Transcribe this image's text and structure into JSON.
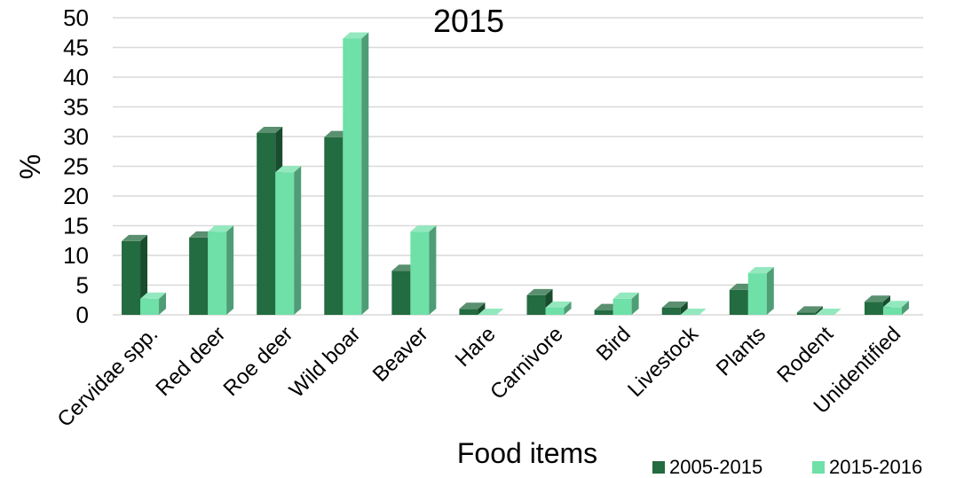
{
  "chart_data": {
    "type": "bar",
    "title": "2015",
    "xlabel": "Food items",
    "ylabel": "%",
    "ylim": [
      0,
      50
    ],
    "yticks": [
      0,
      5,
      10,
      15,
      20,
      25,
      30,
      35,
      40,
      45,
      50
    ],
    "grid": true,
    "legend_position": "bottom-right",
    "categories": [
      "Cervidae spp.",
      "Red deer",
      "Roe deer",
      "Wild boar",
      "Beaver",
      "Hare",
      "Carnivore",
      "Bird",
      "Livestock",
      "Plants",
      "Rodent",
      "Unidentified"
    ],
    "series": [
      {
        "name": "2005-2015",
        "color": "#236b40",
        "values": [
          12.4,
          13.0,
          30.6,
          29.9,
          7.4,
          1.0,
          3.3,
          0.8,
          1.2,
          4.2,
          0.4,
          2.2
        ]
      },
      {
        "name": "2015-2016",
        "color": "#6fe0a8",
        "values": [
          2.7,
          14.0,
          24.0,
          46.5,
          14.0,
          0.0,
          1.2,
          2.7,
          0.0,
          7.0,
          0.0,
          1.3
        ]
      }
    ]
  }
}
